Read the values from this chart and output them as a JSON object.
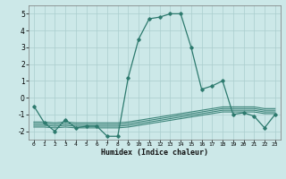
{
  "xlabel": "Humidex (Indice chaleur)",
  "x_values": [
    0,
    1,
    2,
    3,
    4,
    5,
    6,
    7,
    8,
    9,
    10,
    11,
    12,
    13,
    14,
    15,
    16,
    17,
    18,
    19,
    20,
    21,
    22,
    23
  ],
  "main_line": [
    -0.5,
    -1.5,
    -2.0,
    -1.3,
    -1.8,
    -1.7,
    -1.7,
    -2.3,
    -2.3,
    1.2,
    3.5,
    4.7,
    4.8,
    5.0,
    5.0,
    3.0,
    0.5,
    0.7,
    1.0,
    -1.0,
    -0.9,
    -1.1,
    -1.8,
    -1.0
  ],
  "flat_lines": [
    [
      -1.55,
      -1.55,
      -1.6,
      -1.55,
      -1.6,
      -1.6,
      -1.6,
      -1.6,
      -1.6,
      -1.55,
      -1.45,
      -1.35,
      -1.25,
      -1.15,
      -1.05,
      -0.95,
      -0.85,
      -0.75,
      -0.65,
      -0.65,
      -0.65,
      -0.65,
      -0.75,
      -0.75
    ],
    [
      -1.65,
      -1.65,
      -1.7,
      -1.65,
      -1.7,
      -1.7,
      -1.7,
      -1.7,
      -1.7,
      -1.65,
      -1.55,
      -1.45,
      -1.35,
      -1.25,
      -1.15,
      -1.05,
      -0.95,
      -0.85,
      -0.75,
      -0.75,
      -0.75,
      -0.75,
      -0.85,
      -0.85
    ],
    [
      -1.75,
      -1.75,
      -1.8,
      -1.75,
      -1.8,
      -1.8,
      -1.8,
      -1.8,
      -1.8,
      -1.75,
      -1.65,
      -1.55,
      -1.45,
      -1.35,
      -1.25,
      -1.15,
      -1.05,
      -0.95,
      -0.85,
      -0.85,
      -0.85,
      -0.85,
      -0.95,
      -0.95
    ],
    [
      -1.45,
      -1.45,
      -1.5,
      -1.45,
      -1.5,
      -1.5,
      -1.5,
      -1.5,
      -1.5,
      -1.45,
      -1.35,
      -1.25,
      -1.15,
      -1.05,
      -0.95,
      -0.85,
      -0.75,
      -0.65,
      -0.55,
      -0.55,
      -0.55,
      -0.55,
      -0.65,
      -0.65
    ]
  ],
  "line_color": "#2d7a6e",
  "background_color": "#cce8e8",
  "grid_color": "#aacece",
  "ylim": [
    -2.5,
    5.5
  ],
  "yticks": [
    -2,
    -1,
    0,
    1,
    2,
    3,
    4,
    5
  ],
  "xlim": [
    -0.5,
    23.5
  ],
  "xticks": [
    0,
    1,
    2,
    3,
    4,
    5,
    6,
    7,
    8,
    9,
    10,
    11,
    12,
    13,
    14,
    15,
    16,
    17,
    18,
    19,
    20,
    21,
    22,
    23
  ]
}
